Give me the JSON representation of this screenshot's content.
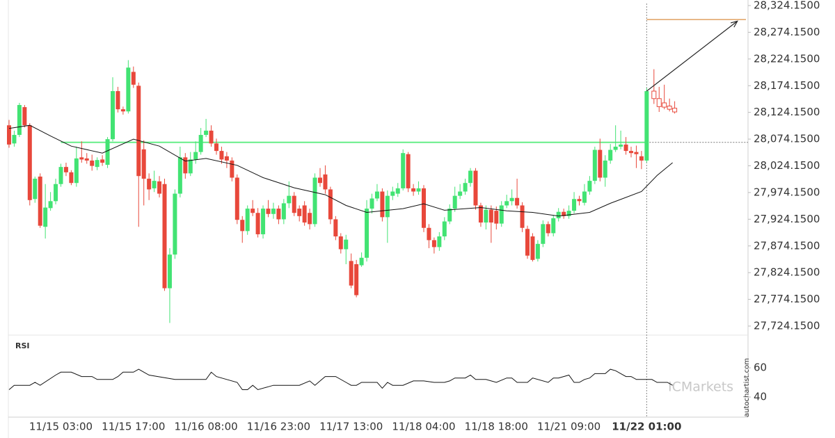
{
  "chart_data": {
    "type": "candlestick",
    "categories": [
      null,
      null,
      null,
      null,
      null,
      null,
      null,
      null,
      null,
      null,
      "11/15 03:00",
      null,
      null,
      null,
      null,
      null,
      null,
      null,
      null,
      null,
      null,
      null,
      null,
      null,
      "11/15 17:00",
      null,
      null,
      null,
      null,
      null,
      null,
      null,
      null,
      null,
      null,
      null,
      null,
      null,
      "11/16 08:00",
      null,
      null,
      null,
      null,
      null,
      null,
      null,
      null,
      null,
      null,
      null,
      null,
      null,
      "11/16 23:00",
      null,
      null,
      null,
      null,
      null,
      null,
      null,
      null,
      null,
      null,
      null,
      null,
      null,
      "11/17 13:00",
      null,
      null,
      null,
      null,
      null,
      null,
      null,
      null,
      null,
      null,
      null,
      null,
      null,
      "11/18 04:00",
      null,
      null,
      null,
      null,
      null,
      null,
      null,
      null,
      null,
      null,
      null,
      null,
      null,
      "11/18 18:00",
      null,
      null,
      null,
      null,
      null,
      null,
      null,
      null,
      null,
      null,
      null,
      null,
      null,
      "11/21 09:00",
      null,
      null,
      null,
      null,
      null,
      null,
      null,
      null,
      null,
      null,
      null,
      null,
      null,
      null,
      "11/22 01:00"
    ],
    "open": [
      28100,
      28066,
      28082,
      28134,
      28100,
      27962,
      28004,
      27910,
      27945,
      27958,
      27990,
      28022,
      28012,
      27992,
      28040,
      28038,
      28034,
      28022,
      28036,
      28026,
      28074,
      28164,
      28130,
      28126,
      28200,
      28174,
      28055,
      28000,
      27982,
      27995,
      27990,
      27795,
      27858,
      27972,
      28040,
      28010,
      28036,
      28050,
      28082,
      28090,
      28066,
      28052,
      28042,
      28034,
      28002,
      27923,
      27902,
      27944,
      27936,
      27896,
      27944,
      27934,
      27944,
      27924,
      27954,
      27968,
      27944,
      27950,
      27936,
      27915,
      28002,
      28008,
      27980,
      27924,
      27892,
      27868,
      27846,
      27840,
      27838,
      27852,
      27944,
      27963,
      27976,
      27928,
      27968,
      27972,
      27982,
      28046,
      27982,
      27976,
      27982,
      27908,
      27885,
      27872,
      27892,
      27920,
      27944,
      27968,
      27976,
      27992,
      28015,
      27950,
      27918,
      27942,
      27940,
      27916,
      27950,
      27958,
      27964,
      27950,
      27906,
      27892,
      27850,
      27878,
      27915,
      27898,
      27926,
      27938,
      27930,
      27940,
      27962,
      27955,
      27976,
      27996,
      28054,
      28002,
      28034,
      28054,
      28060,
      28064,
      28052,
      28050,
      28042,
      28034
    ],
    "high": [
      28110,
      28090,
      28142,
      28138,
      28104,
      28004,
      28010,
      27990,
      27975,
      28000,
      28028,
      28030,
      28016,
      28060,
      28070,
      28048,
      28045,
      28040,
      28044,
      28078,
      28190,
      28172,
      28135,
      28222,
      28210,
      28180,
      28072,
      28010,
      28015,
      28005,
      28000,
      27870,
      27980,
      28060,
      28048,
      28050,
      28070,
      28095,
      28112,
      28100,
      28075,
      28060,
      28050,
      28040,
      28008,
      27930,
      27950,
      27960,
      27945,
      27950,
      27960,
      27955,
      27950,
      27962,
      27995,
      27975,
      27950,
      27958,
      27944,
      28010,
      28020,
      28025,
      27985,
      27930,
      27898,
      27895,
      27860,
      27848,
      27862,
      27960,
      27972,
      27990,
      27982,
      27978,
      27985,
      27992,
      28055,
      28050,
      27990,
      27995,
      27988,
      27915,
      27890,
      27900,
      27928,
      27952,
      27985,
      27990,
      28000,
      28020,
      28020,
      27955,
      27950,
      27950,
      27948,
      27958,
      27970,
      27980,
      28000,
      27956,
      27912,
      27898,
      27885,
      27922,
      27920,
      27932,
      27945,
      27944,
      27950,
      27975,
      27968,
      27990,
      28005,
      28060,
      28075,
      28044,
      28065,
      28100,
      28090,
      28078,
      28060,
      28062,
      28052,
      28170
    ],
    "low": [
      28058,
      28060,
      28078,
      28096,
      27950,
      27955,
      27908,
      27888,
      27940,
      27952,
      27985,
      28005,
      27988,
      27985,
      28030,
      28028,
      28015,
      28016,
      28024,
      28020,
      28070,
      28124,
      28120,
      28122,
      28170,
      27910,
      27950,
      27960,
      27975,
      27965,
      27790,
      27730,
      27850,
      27965,
      28000,
      28005,
      28028,
      28045,
      28078,
      28060,
      28045,
      28028,
      28020,
      27995,
      27915,
      27880,
      27895,
      27930,
      27890,
      27888,
      27928,
      27925,
      27915,
      27915,
      27945,
      27930,
      27920,
      27912,
      27905,
      27910,
      27985,
      27972,
      27915,
      27885,
      27860,
      27840,
      27795,
      27778,
      27835,
      27845,
      27935,
      27958,
      27920,
      27880,
      27960,
      27966,
      27978,
      27975,
      27968,
      27970,
      27900,
      27870,
      27860,
      27865,
      27885,
      27915,
      27938,
      27962,
      27970,
      27985,
      27942,
      27910,
      27905,
      27880,
      27905,
      27910,
      27945,
      27950,
      27944,
      27900,
      27850,
      27845,
      27845,
      27872,
      27892,
      27892,
      27920,
      27925,
      27925,
      27935,
      27950,
      27950,
      27970,
      27990,
      27995,
      27985,
      28028,
      28050,
      28055,
      28045,
      28040,
      28020,
      28018,
      28030
    ],
    "close": [
      28064,
      28082,
      28138,
      28100,
      27960,
      28000,
      27912,
      27946,
      27958,
      27990,
      28022,
      28012,
      27992,
      28038,
      28036,
      28034,
      28024,
      28035,
      28030,
      28074,
      28164,
      28130,
      28126,
      28208,
      28176,
      28005,
      28000,
      27980,
      27996,
      27972,
      27795,
      27858,
      27972,
      28040,
      28010,
      28036,
      28050,
      28082,
      28090,
      28066,
      28052,
      28036,
      28034,
      28002,
      27923,
      27902,
      27944,
      27936,
      27896,
      27944,
      27934,
      27944,
      27924,
      27954,
      27968,
      27936,
      27930,
      27918,
      27915,
      28002,
      27992,
      27980,
      27924,
      27892,
      27868,
      27886,
      27800,
      27782,
      27852,
      27944,
      27963,
      27976,
      27928,
      27968,
      27976,
      27982,
      28048,
      27982,
      27976,
      27982,
      27908,
      27885,
      27872,
      27892,
      27920,
      27944,
      27968,
      27976,
      27992,
      28015,
      27950,
      27918,
      27942,
      27918,
      27916,
      27950,
      27958,
      27964,
      27950,
      27908,
      27856,
      27848,
      27878,
      27915,
      27898,
      27926,
      27938,
      27930,
      27940,
      27962,
      27958,
      27976,
      27996,
      28054,
      28002,
      28034,
      28054,
      28060,
      28064,
      28052,
      28048,
      28046,
      28034,
      28164
    ],
    "later": {
      "open": [
        28164,
        28150,
        28142,
        28136,
        28132
      ],
      "high": [
        28205,
        28172,
        28176,
        28150,
        28145
      ],
      "low": [
        28140,
        28125,
        28130,
        28126,
        28122
      ],
      "close": [
        28150,
        28135,
        28134,
        28130,
        28125
      ]
    },
    "up_color": "#42e373",
    "down_color": "#e8483b",
    "ma": {
      "color": "#111111",
      "x": [
        0,
        4,
        8,
        12,
        18,
        24,
        29,
        34,
        38,
        44,
        49,
        55,
        61,
        65,
        69,
        76,
        80,
        84,
        91,
        96,
        101,
        106,
        112,
        116,
        122,
        125,
        128
      ],
      "values": [
        28094,
        28100,
        28080,
        28061,
        28048,
        28074,
        28061,
        28033,
        28038,
        28025,
        28002,
        27983,
        27970,
        27950,
        27937,
        27944,
        27953,
        27941,
        27946,
        27940,
        27937,
        27930,
        27937,
        27954,
        27976,
        28006,
        28030
      ]
    },
    "support_level": 28068,
    "support_x": 10,
    "support_color": "#66ee88",
    "resistance_level": 28298,
    "resistance_color": "#e0a060",
    "arrow": {
      "x": [
        123,
        140.5
      ],
      "values": [
        28164,
        28295
      ]
    },
    "ylim": [
      27724.15,
      28324.15
    ],
    "yticks": [
      {
        "value": 28324.15,
        "label": "28,324.1500"
      },
      {
        "value": 28274.15,
        "label": "28,274.1500"
      },
      {
        "value": 28224.15,
        "label": "28,224.1500"
      },
      {
        "value": 28174.15,
        "label": "28,174.1500"
      },
      {
        "value": 28124.15,
        "label": "28,124.1500"
      },
      {
        "value": 28074.15,
        "label": "28,074.1500"
      },
      {
        "value": 28024.15,
        "label": "28,024.1500"
      },
      {
        "value": 27974.15,
        "label": "27,974.1500"
      },
      {
        "value": 27924.15,
        "label": "27,924.1500"
      },
      {
        "value": 27874.15,
        "label": "27,874.1500"
      },
      {
        "value": 27824.15,
        "label": "27,824.1500"
      },
      {
        "value": 27774.15,
        "label": "27,774.1500"
      },
      {
        "value": 27724.15,
        "label": "27,724.1500"
      }
    ],
    "rsi": {
      "label": "RSI",
      "color": "#111111",
      "x": [
        0,
        1,
        4,
        5,
        6,
        9,
        10,
        12,
        14,
        16,
        17,
        20,
        21,
        22,
        24,
        25,
        26,
        27,
        32,
        38,
        39,
        40,
        42,
        44,
        45,
        46,
        47,
        48,
        50,
        51,
        56,
        58,
        59,
        60,
        61,
        63,
        65,
        66,
        67,
        68,
        71,
        72,
        73,
        74,
        76,
        78,
        80,
        82,
        84,
        85,
        86,
        88,
        89,
        90,
        92,
        94,
        96,
        97,
        98,
        100,
        101,
        104,
        105,
        106,
        108,
        109,
        110,
        111,
        112,
        113,
        115,
        116,
        117,
        119,
        120,
        121,
        122,
        124,
        125,
        127,
        128
      ],
      "values": [
        45,
        48,
        48,
        50,
        48,
        55,
        57,
        57,
        54,
        54,
        52,
        52,
        54,
        57,
        57,
        59,
        57,
        55,
        52,
        52,
        57,
        54,
        52,
        50,
        45,
        45,
        48,
        45,
        47,
        48,
        48,
        51,
        48,
        51,
        54,
        54,
        50,
        48,
        48,
        50,
        50,
        46,
        50,
        48,
        48,
        51,
        51,
        50,
        50,
        51,
        53,
        53,
        55,
        52,
        52,
        50,
        53,
        53,
        50,
        50,
        53,
        50,
        53,
        53,
        55,
        50,
        50,
        52,
        53,
        56,
        56,
        59,
        58,
        54,
        54,
        52,
        52,
        52,
        50,
        50,
        48
      ],
      "ylim": [
        26.2,
        78.6
      ],
      "yticks": [
        40,
        60
      ]
    },
    "watermark": "autochartist.com",
    "broker": "ICMarkets"
  }
}
